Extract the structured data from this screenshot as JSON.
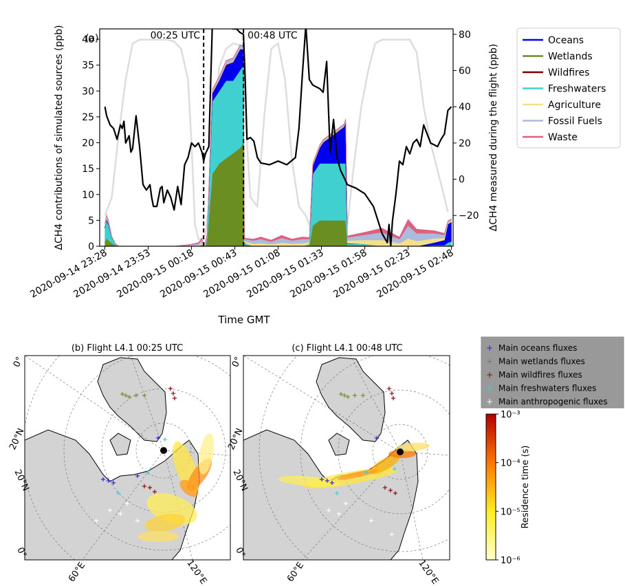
{
  "chart_data": [
    {
      "type": "area",
      "panel_label": "(a)",
      "xlabel": "Time GMT",
      "ylabel_left": "ΔCH4 contributions of simulated sources (ppb)",
      "ylabel_right": "ΔCH4 measured during the flight (ppb)",
      "x_ticks": [
        "2020-09-14 23:28",
        "2020-09-14 23:53",
        "2020-09-15 00:18",
        "2020-09-15 00:43",
        "2020-09-15 01:08",
        "2020-09-15 01:33",
        "2020-09-15 01:58",
        "2020-09-15 02:23",
        "2020-09-15 02:48"
      ],
      "y_left_ticks": [
        0,
        5,
        10,
        15,
        20,
        25,
        30,
        35,
        40
      ],
      "y_right_ticks": [
        -20,
        0,
        20,
        40,
        60,
        80
      ],
      "xlim_minutes": [
        -3,
        201
      ],
      "ylim_left": [
        0,
        42
      ],
      "ylim_right": [
        -37,
        83
      ],
      "markers": [
        {
          "label": "00:25 UTC",
          "minute": 57
        },
        {
          "label": "00:48 UTC",
          "minute": 80
        }
      ],
      "legend": [
        {
          "name": "Oceans",
          "color": "#0000ee"
        },
        {
          "name": "Wetlands",
          "color": "#6b8e23"
        },
        {
          "name": "Wildfires",
          "color": "#7b0000"
        },
        {
          "name": "Freshwaters",
          "color": "#40d0d0"
        },
        {
          "name": "Agriculture",
          "color": "#f5e08a"
        },
        {
          "name": "Fossil Fuels",
          "color": "#aabbdd"
        },
        {
          "name": "Waste",
          "color": "#e06080"
        }
      ],
      "stack": {
        "x_minutes": [
          0,
          1,
          2,
          4,
          6,
          8,
          10,
          20,
          30,
          40,
          50,
          54,
          56,
          57,
          58,
          59,
          62,
          66,
          70,
          74,
          78,
          80,
          80.5,
          82,
          86,
          90,
          96,
          102,
          108,
          114,
          118,
          120,
          124,
          126,
          130,
          134,
          138,
          139,
          140,
          150,
          160,
          170,
          175,
          180,
          190,
          196,
          198,
          200
        ],
        "series": [
          {
            "name": "Wetlands",
            "values": [
              1.0,
              1.5,
              1.2,
              0.6,
              0.2,
              0,
              0,
              0,
              0,
              0,
              0,
              0,
              0.2,
              0,
              0,
              1.0,
              14,
              16,
              17,
              18,
              19,
              20,
              0.3,
              0.2,
              0,
              0,
              0,
              0,
              0,
              0,
              0.2,
              4,
              5,
              5,
              5,
              5,
              5,
              5,
              0.2,
              0.2,
              0,
              0,
              0,
              0,
              0,
              0,
              0.2,
              0.3
            ]
          },
          {
            "name": "Freshwaters",
            "values": [
              2.5,
              3.5,
              3.0,
              1.0,
              0.3,
              0,
              0,
              0,
              0,
              0,
              0,
              0,
              0.2,
              0,
              0,
              0.5,
              14,
              14,
              15,
              14,
              15,
              15,
              0.3,
              0.2,
              0,
              0,
              0,
              0,
              0,
              0,
              0.2,
              10,
              11,
              11,
              11,
              11,
              11,
              11,
              0.3,
              0.2,
              0,
              0,
              0,
              0,
              0.2,
              0.2,
              0.5,
              0.6
            ]
          },
          {
            "name": "Oceans",
            "values": [
              0.3,
              0.3,
              0.3,
              0.1,
              0,
              0,
              0,
              0,
              0,
              0,
              0,
              0,
              0,
              0,
              0,
              0.2,
              1.5,
              2.0,
              3.0,
              3.5,
              4.0,
              3.0,
              0.1,
              0,
              0,
              0,
              0,
              0,
              0,
              0,
              0,
              1.5,
              3.0,
              4.0,
              5.0,
              6.0,
              7.0,
              8.0,
              0.1,
              0,
              0,
              0,
              0,
              0,
              0.5,
              1.0,
              3.5,
              3.7
            ]
          },
          {
            "name": "Wildfires",
            "values": [
              0,
              0,
              0,
              0,
              0,
              0,
              0,
              0,
              0,
              0,
              0,
              0,
              0,
              0,
              0,
              0,
              0.1,
              0.1,
              0.1,
              0.1,
              0.1,
              0.1,
              0,
              0,
              0,
              0,
              0,
              0,
              0,
              0,
              0,
              0.1,
              0.1,
              0.1,
              0.1,
              0.1,
              0.1,
              0.1,
              0,
              0,
              0,
              0,
              0,
              0,
              0,
              0,
              0.1,
              0.1
            ]
          },
          {
            "name": "Agriculture",
            "values": [
              0.3,
              0.3,
              0.2,
              0.1,
              0,
              0,
              0,
              0,
              0,
              0,
              0.1,
              0.2,
              0.3,
              0,
              0.3,
              0.2,
              0.1,
              0.1,
              0.1,
              0.1,
              0.1,
              0.1,
              0.3,
              0.4,
              0.5,
              0.6,
              0.4,
              0.7,
              0.5,
              0.6,
              0.4,
              0.1,
              0.1,
              0.1,
              0.1,
              0.1,
              0.1,
              0.1,
              0.5,
              0.8,
              1.2,
              0.6,
              1.5,
              1.0,
              0.8,
              0.4,
              0.2,
              0.2
            ]
          },
          {
            "name": "Fossil Fuels",
            "values": [
              0.3,
              0.4,
              0.3,
              0.1,
              0,
              0,
              0,
              0,
              0,
              0,
              0.2,
              0.3,
              0.6,
              0,
              0.4,
              0.4,
              0.5,
              0.6,
              0.6,
              0.6,
              0.6,
              0.5,
              0.4,
              0.5,
              0.6,
              0.8,
              0.5,
              0.9,
              0.6,
              0.8,
              0.6,
              0.3,
              0.3,
              0.3,
              0.3,
              0.3,
              0.3,
              0.3,
              0.6,
              1.0,
              1.5,
              0.8,
              2.5,
              1.5,
              1.0,
              0.6,
              0.3,
              0.3
            ]
          },
          {
            "name": "Waste",
            "values": [
              0.1,
              0.1,
              0.1,
              0,
              0,
              0,
              0,
              0,
              0,
              0,
              0.1,
              0.2,
              0.3,
              0,
              0.2,
              0.1,
              0.1,
              0.1,
              0.1,
              0.1,
              0.1,
              0.1,
              0.2,
              0.2,
              0.3,
              0.4,
              0.3,
              0.5,
              0.3,
              0.4,
              0.3,
              0.1,
              0.1,
              0.1,
              0.1,
              0.1,
              0.1,
              0.1,
              0.3,
              0.5,
              0.8,
              0.4,
              1.2,
              0.8,
              0.5,
              0.3,
              0.1,
              0.1
            ]
          }
        ]
      },
      "measured": {
        "x_minutes": [
          0,
          1,
          3,
          5,
          7,
          9,
          10,
          11,
          12,
          14,
          15,
          16,
          18,
          20,
          22,
          24,
          26,
          27,
          28,
          30,
          32,
          33,
          34,
          36,
          38,
          40,
          42,
          44,
          46,
          48,
          50,
          52,
          54,
          56,
          57,
          58,
          60,
          62,
          64,
          66,
          68,
          70,
          72,
          74,
          76,
          78,
          80,
          81,
          82,
          84,
          86,
          88,
          90,
          95,
          100,
          105,
          110,
          112,
          114,
          116,
          118,
          120,
          122,
          124,
          126,
          128,
          130,
          132,
          134,
          136,
          138,
          140,
          145,
          150,
          155,
          160,
          163,
          164,
          165,
          166,
          168,
          170,
          172,
          174,
          176,
          178,
          180,
          182,
          184,
          186,
          188,
          190,
          192,
          194,
          196,
          198,
          200
        ],
        "values": [
          40,
          35,
          30,
          28,
          22,
          30,
          28,
          32,
          20,
          24,
          15,
          17,
          35,
          18,
          -3,
          -6,
          -3,
          -10,
          -15,
          -15,
          -5,
          -4,
          -13,
          -6,
          -10,
          -17,
          -4,
          -14,
          8,
          12,
          20,
          18,
          20,
          15,
          10,
          14,
          18,
          85,
          90,
          88,
          89,
          87,
          84,
          83,
          83,
          81,
          80,
          55,
          22,
          23,
          21,
          12,
          9,
          8,
          10,
          8,
          12,
          28,
          58,
          85,
          55,
          52,
          51,
          50,
          48,
          65,
          15,
          33,
          12,
          5,
          1,
          -3,
          -5,
          -8,
          -15,
          -30,
          -35,
          -25,
          -37,
          -23,
          -8,
          10,
          8,
          18,
          14,
          20,
          22,
          18,
          30,
          25,
          20,
          19,
          18,
          22,
          25,
          38,
          40
        ]
      },
      "altitude_grey": {
        "x_minutes": [
          0,
          4,
          8,
          12,
          16,
          20,
          24,
          28,
          32,
          36,
          40,
          44,
          48,
          50,
          52,
          54,
          56,
          58,
          60,
          62,
          64,
          66,
          70,
          74,
          78,
          80,
          82,
          84,
          88,
          92,
          96,
          100,
          104,
          108,
          112,
          116,
          120,
          124,
          128,
          132,
          136,
          140,
          144,
          148,
          152,
          156,
          160,
          164,
          168,
          172,
          176,
          180,
          184,
          188,
          192,
          196,
          198
        ],
        "values": [
          -20,
          -10,
          25,
          55,
          75,
          77,
          77,
          77,
          77,
          77,
          76,
          72,
          55,
          20,
          -25,
          -33,
          -33,
          -30,
          -15,
          10,
          40,
          62,
          72,
          75,
          74,
          65,
          20,
          -10,
          -15,
          35,
          72,
          75,
          55,
          10,
          -15,
          -20,
          -30,
          -33,
          -33,
          -33,
          -33,
          -25,
          10,
          40,
          60,
          75,
          77,
          77,
          77,
          77,
          77,
          70,
          40,
          20,
          5,
          -10,
          -18
        ]
      }
    },
    {
      "type": "map",
      "panel_label": "(b) Flight L4.1 00:25 UTC",
      "lat_labels": [
        "0°",
        "20°N",
        "20°N",
        "0°"
      ],
      "lon_labels": [
        "60°E",
        "120°E"
      ]
    },
    {
      "type": "map",
      "panel_label": "(c) Flight L4.1 00:48 UTC",
      "lat_labels": [
        "0°",
        "20°N",
        "20°N",
        "0°"
      ],
      "lon_labels": [
        "60°E",
        "120°E"
      ]
    }
  ],
  "map_legend": [
    {
      "label": "Main oceans fluxes",
      "color": "#1f1fdf"
    },
    {
      "label": "Main wetlands fluxes",
      "color": "#6b8e23"
    },
    {
      "label": "Main wildfires fluxes",
      "color": "#8b0000"
    },
    {
      "label": "Main freshwaters fluxes",
      "color": "#40d0d0"
    },
    {
      "label": "Main anthropogenic fluxes",
      "color": "#ffffff"
    }
  ],
  "colorbar": {
    "label": "Residence time (s)",
    "ticks": [
      "10⁻³",
      "10⁻⁴",
      "10⁻⁵",
      "10⁻⁶"
    ],
    "log_range": [
      -6,
      -3
    ]
  }
}
